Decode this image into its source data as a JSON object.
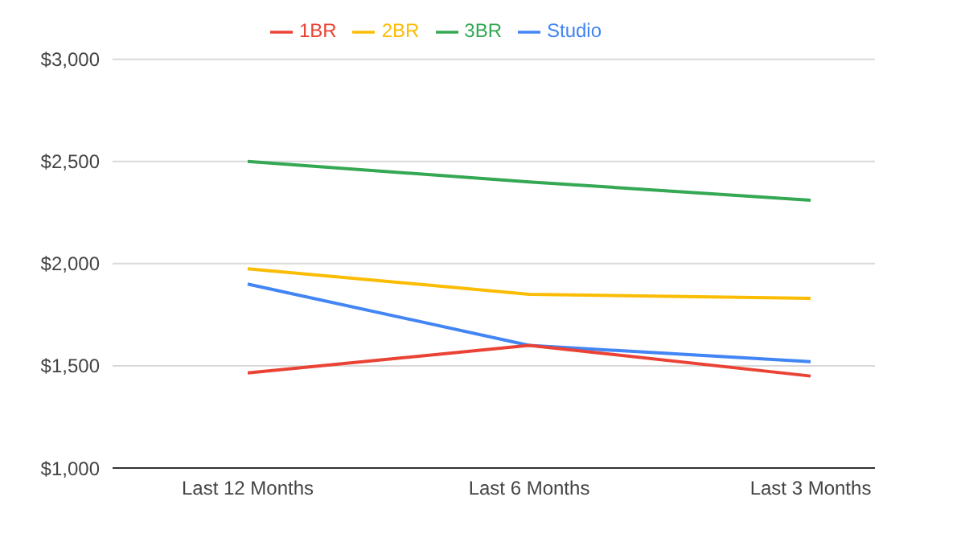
{
  "chart_data": {
    "type": "line",
    "categories": [
      "Last 12 Months",
      "Last 6 Months",
      "Last 3 Months"
    ],
    "series": [
      {
        "name": "Studio",
        "color": "#4285f4",
        "values": [
          1900,
          1600,
          1520
        ]
      },
      {
        "name": "1BR",
        "color": "#ea4335",
        "values": [
          1465,
          1600,
          1450
        ]
      },
      {
        "name": "2BR",
        "color": "#fbbc04",
        "values": [
          1975,
          1850,
          1830
        ]
      },
      {
        "name": "3BR",
        "color": "#34a853",
        "values": [
          2500,
          2400,
          2310
        ]
      }
    ],
    "ylim": [
      1000,
      3000
    ],
    "yticks": [
      {
        "value": 1000,
        "label": "$1,000"
      },
      {
        "value": 1500,
        "label": "$1,500"
      },
      {
        "value": 2000,
        "label": "$2,000"
      },
      {
        "value": 2500,
        "label": "$2,500"
      },
      {
        "value": 3000,
        "label": "$3,000"
      }
    ],
    "grid": "y",
    "legend": "top",
    "marker": "none",
    "line_style": "solid"
  }
}
